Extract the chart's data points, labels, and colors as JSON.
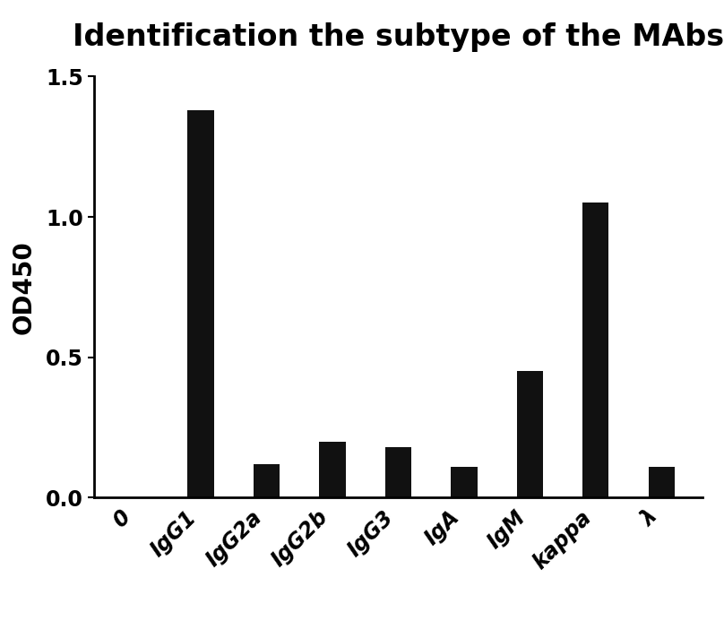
{
  "title": "Identification the subtype of the MAbs",
  "xlabel": "",
  "ylabel": "OD450",
  "categories": [
    "0",
    "IgG1",
    "IgG2a",
    "IgG2b",
    "IgG3",
    "IgA",
    "IgM",
    "kappa",
    "λ"
  ],
  "values": [
    0.0,
    1.38,
    0.12,
    0.2,
    0.18,
    0.11,
    0.45,
    1.05,
    0.11
  ],
  "bar_color": "#111111",
  "ylim": [
    0.0,
    1.5
  ],
  "yticks": [
    0.0,
    0.5,
    1.0,
    1.5
  ],
  "background_color": "#ffffff",
  "title_fontsize": 24,
  "axis_label_fontsize": 20,
  "tick_fontsize": 17,
  "bar_width": 0.4
}
